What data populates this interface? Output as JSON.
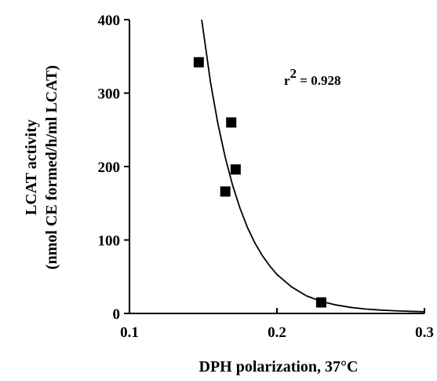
{
  "chart_data": {
    "type": "scatter",
    "title": "",
    "xlabel": "DPH polarization, 37°C",
    "ylabel_lines": [
      "LCAT activity",
      "(nmol CE formed/h/ml LCAT)"
    ],
    "xlim": [
      0.1,
      0.3
    ],
    "ylim": [
      0,
      400
    ],
    "x_ticks": [
      "0.1",
      "0.2",
      "0.3"
    ],
    "x_tick_values": [
      0.1,
      0.2,
      0.3
    ],
    "y_ticks": [
      "0",
      "100",
      "200",
      "300",
      "400"
    ],
    "y_tick_values": [
      0,
      100,
      200,
      300,
      400
    ],
    "grid": false,
    "marker": "square",
    "points": [
      {
        "x": 0.147,
        "y": 342
      },
      {
        "x": 0.165,
        "y": 166
      },
      {
        "x": 0.169,
        "y": 260
      },
      {
        "x": 0.172,
        "y": 196
      },
      {
        "x": 0.23,
        "y": 15
      }
    ],
    "fit_curve": {
      "form": "exponential decay",
      "x": [
        0.149,
        0.155,
        0.16,
        0.165,
        0.17,
        0.175,
        0.18,
        0.185,
        0.19,
        0.195,
        0.2,
        0.21,
        0.22,
        0.23,
        0.24,
        0.25,
        0.26,
        0.27,
        0.28,
        0.29,
        0.3
      ],
      "y": [
        400,
        314,
        258,
        212,
        174,
        143,
        117,
        96,
        79,
        65,
        53,
        36,
        24,
        16.5,
        11.5,
        8.2,
        6.0,
        4.6,
        3.6,
        2.9,
        2.4
      ]
    },
    "annotation": {
      "base": "r",
      "superscript": "2",
      "text": " = 0.928"
    }
  }
}
